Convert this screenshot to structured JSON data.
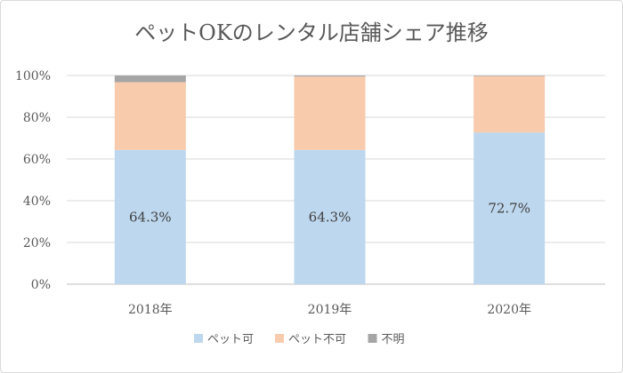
{
  "chart_data": {
    "type": "bar",
    "stacked": true,
    "percent": true,
    "title": "ペットOKのレンタル店舗シェア推移",
    "categories": [
      "2018年",
      "2019年",
      "2020年"
    ],
    "series": [
      {
        "name": "ペット可",
        "values": [
          64.3,
          64.3,
          72.7
        ],
        "color": "#bdd7ee",
        "labels": [
          "64.3%",
          "64.3%",
          "72.7%"
        ]
      },
      {
        "name": "ペット不可",
        "values": [
          32.5,
          35.2,
          27.0
        ],
        "color": "#f8cbad"
      },
      {
        "name": "不明",
        "values": [
          3.2,
          0.5,
          0.3
        ],
        "color": "#a5a5a5"
      }
    ],
    "yaxis": {
      "ticks": [
        "0%",
        "20%",
        "40%",
        "60%",
        "80%",
        "100%"
      ],
      "min": 0,
      "max": 100,
      "step": 20
    },
    "grid": true,
    "legend": "bottom"
  }
}
